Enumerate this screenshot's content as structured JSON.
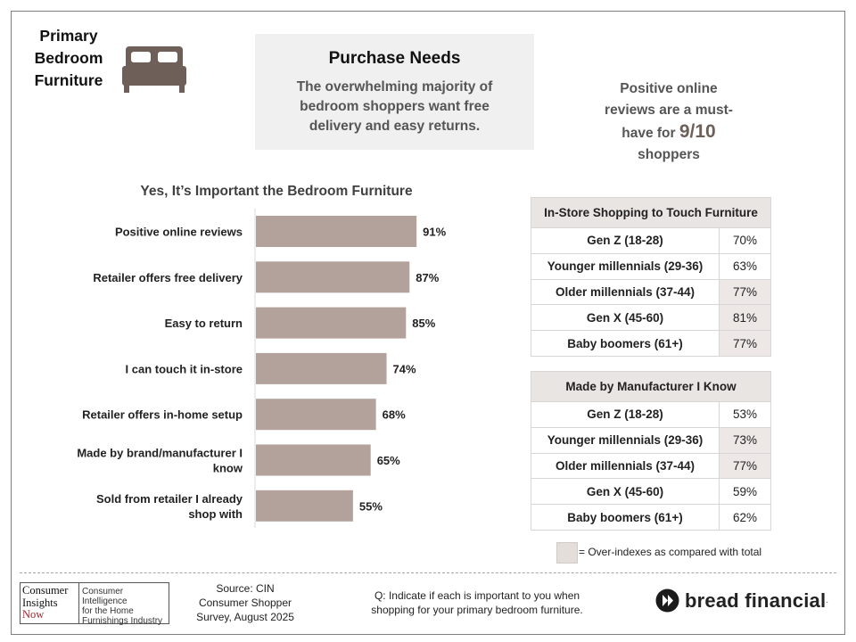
{
  "header": {
    "category_title": [
      "Primary",
      "Bedroom",
      "Furniture"
    ],
    "icon": "bed-icon"
  },
  "summary": {
    "title": "Purchase Needs",
    "text": "The overwhelming majority of bedroom shoppers want free delivery and easy returns."
  },
  "callout": {
    "line1": "Positive online",
    "line2": "reviews are a must-",
    "line3_prefix": "have for ",
    "highlight": "9/10",
    "line4": "shoppers"
  },
  "chart_data": {
    "type": "bar",
    "orientation": "horizontal",
    "title": "Yes, It’s Important the Bedroom Furniture",
    "categories": [
      "Positive online reviews",
      "Retailer offers free delivery",
      "Easy to return",
      "I can touch it in-store",
      "Retailer offers in-home setup",
      "Made by brand/manufacturer I know",
      "Sold from retailer I already shop with"
    ],
    "category_lines": [
      [
        "Positive online reviews"
      ],
      [
        "Retailer offers free delivery"
      ],
      [
        "Easy to return"
      ],
      [
        "I can touch it in-store"
      ],
      [
        "Retailer offers in-home setup"
      ],
      [
        "Made by brand/manufacturer I",
        "know"
      ],
      [
        "Sold from retailer I already",
        "shop with"
      ]
    ],
    "values": [
      91,
      87,
      85,
      74,
      68,
      65,
      55
    ],
    "value_labels": [
      "91%",
      "87%",
      "85%",
      "74%",
      "68%",
      "65%",
      "55%"
    ],
    "xlim": [
      0,
      100
    ],
    "bar_color": "#b3a29b"
  },
  "tables": [
    {
      "title": "In-Store Shopping to Touch Furniture",
      "rows": [
        {
          "label": "Gen Z (18-28)",
          "value": "70%",
          "over_index": false
        },
        {
          "label": "Younger millennials (29-36)",
          "value": "63%",
          "over_index": false
        },
        {
          "label": "Older millennials (37-44)",
          "value": "77%",
          "over_index": true
        },
        {
          "label": "Gen X (45-60)",
          "value": "81%",
          "over_index": true
        },
        {
          "label": "Baby boomers (61+)",
          "value": "77%",
          "over_index": true
        }
      ]
    },
    {
      "title": "Made by Manufacturer I Know",
      "rows": [
        {
          "label": "Gen Z (18-28)",
          "value": "53%",
          "over_index": false
        },
        {
          "label": "Younger millennials (29-36)",
          "value": "73%",
          "over_index": true
        },
        {
          "label": "Older millennials (37-44)",
          "value": "77%",
          "over_index": true
        },
        {
          "label": "Gen X (45-60)",
          "value": "59%",
          "over_index": false
        },
        {
          "label": "Baby boomers (61+)",
          "value": "62%",
          "over_index": false
        }
      ]
    }
  ],
  "legend": {
    "text": "= Over-indexes as compared with total",
    "color": "#e3deda"
  },
  "footer": {
    "cin_logo": {
      "left": [
        "Consumer",
        "Insights",
        "Now"
      ],
      "right": [
        "Consumer Intelligence",
        "for the Home",
        "Furnishings Industry"
      ]
    },
    "source": [
      "Source: CIN",
      "Consumer Shopper",
      "Survey, August 2025"
    ],
    "question": [
      "Q:  Indicate if each is important to you when",
      "shopping for your primary bedroom furniture."
    ],
    "brand": "bread financial",
    "brand_dot": "."
  }
}
